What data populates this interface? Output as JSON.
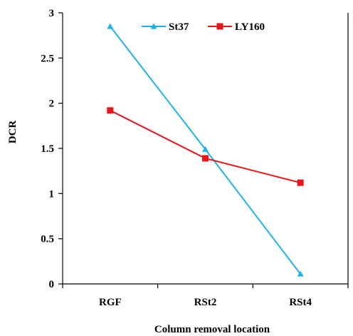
{
  "chart_data": {
    "type": "line",
    "categories": [
      "RGF",
      "RSt2",
      "RSt4"
    ],
    "series": [
      {
        "name": "St37",
        "values": [
          2.85,
          1.49,
          0.11
        ],
        "color": "#1FB2E6",
        "marker": "triangle"
      },
      {
        "name": "LY160",
        "values": [
          1.92,
          1.39,
          1.12
        ],
        "color": "#E8161A",
        "marker": "square"
      }
    ],
    "xlabel": "Column removal location",
    "ylabel": "DCR",
    "ylim": [
      0,
      3
    ],
    "yticks": [
      {
        "value": 0,
        "label": "0"
      },
      {
        "value": 0.5,
        "label": "0.5"
      },
      {
        "value": 1,
        "label": "1"
      },
      {
        "value": 1.5,
        "label": "1.5"
      },
      {
        "value": 2,
        "label": "2"
      },
      {
        "value": 2.5,
        "label": "2.5"
      },
      {
        "value": 3,
        "label": "3"
      }
    ],
    "grid": false,
    "legend_position": "top"
  }
}
